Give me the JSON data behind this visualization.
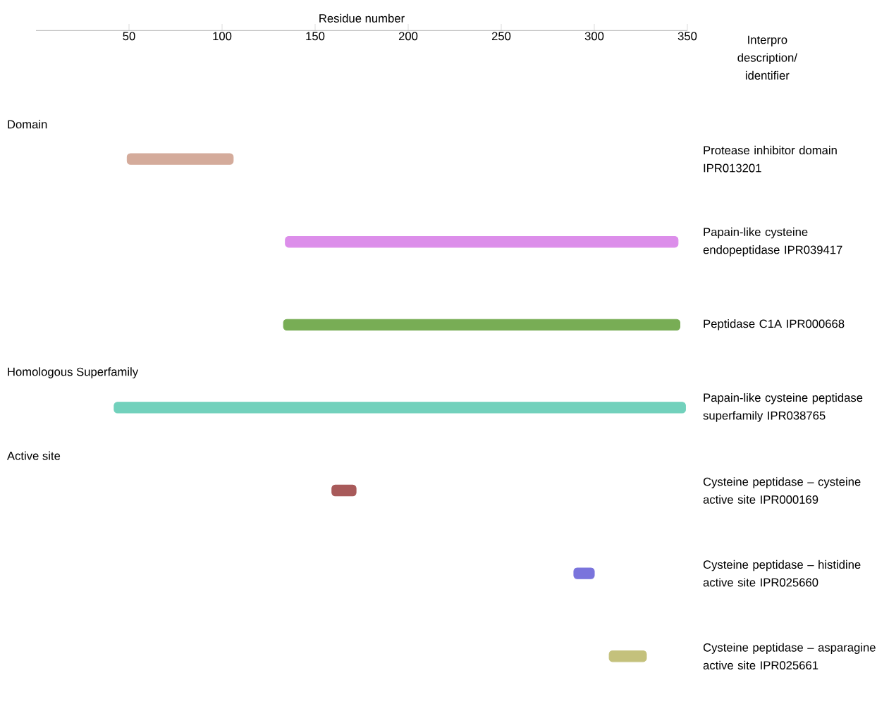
{
  "chart_data": {
    "type": "bar",
    "orientation": "horizontal",
    "xlabel": "Residue number",
    "legend_title": "Interpro description/ identifier",
    "categories": [
      "Protease inhibitor domain IPR013201",
      "Papain-like cysteine endopeptidase IPR039417",
      "Peptidase C1A IPR000668",
      "Papain-like cysteine peptidase superfamily IPR038765",
      "Cysteine peptidase – cysteine active site IPR000169",
      "Cysteine peptidase – histidine active site IPR025660",
      "Cysteine peptidase – asparagine active site IPR025661"
    ],
    "base": [
      49,
      134,
      133,
      42,
      159,
      289,
      308
    ],
    "values": [
      57,
      211,
      213,
      307,
      13,
      11,
      20
    ],
    "colors": [
      "#d4ab9b",
      "#dc8eea",
      "#78ad55",
      "#72d1bc",
      "#a85a5a",
      "#7a74dc",
      "#c4c17c"
    ],
    "xlim": [
      0,
      350
    ],
    "xticks": [
      50,
      100,
      150,
      200,
      250,
      300,
      350
    ],
    "annotations": [
      "Domain",
      "Homologous Superfamily",
      "Active site"
    ]
  }
}
